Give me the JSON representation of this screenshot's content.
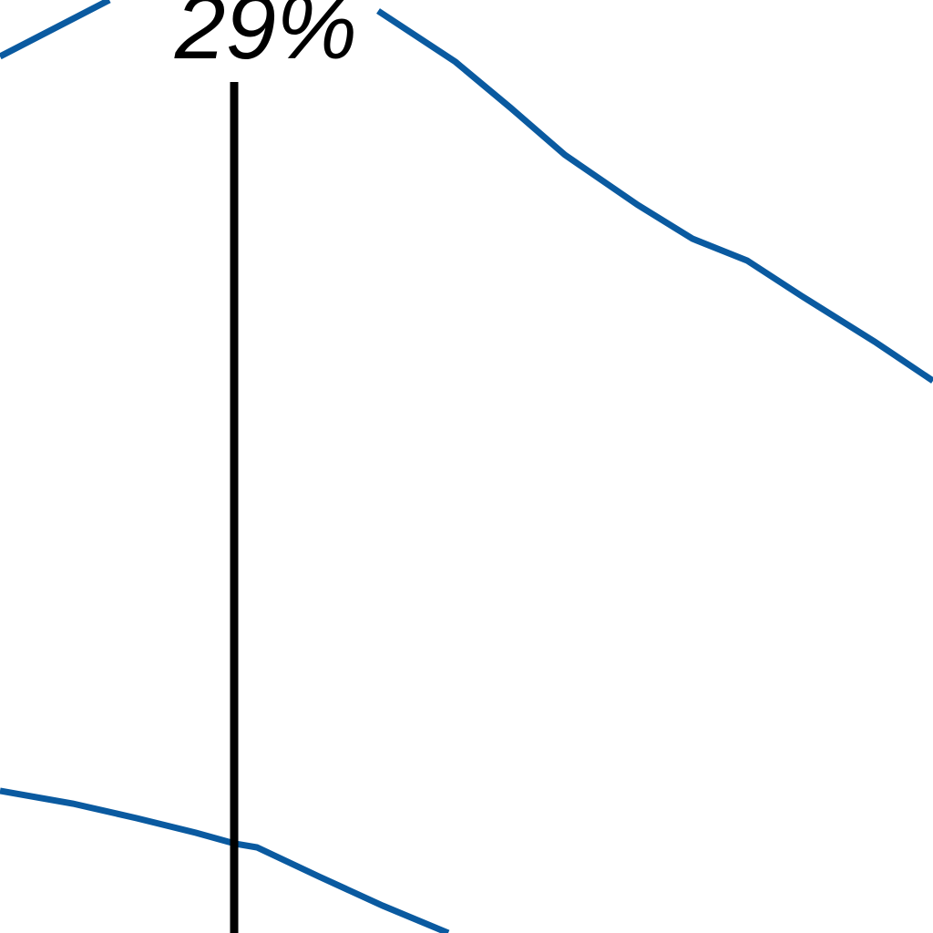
{
  "chart_data": {
    "type": "line",
    "title": "",
    "xlabel": "",
    "ylabel": "",
    "grid": false,
    "legend": "none",
    "series_color": "#0a5aa0",
    "marker_color": "#000000",
    "annotation": {
      "text": "29%"
    }
  }
}
